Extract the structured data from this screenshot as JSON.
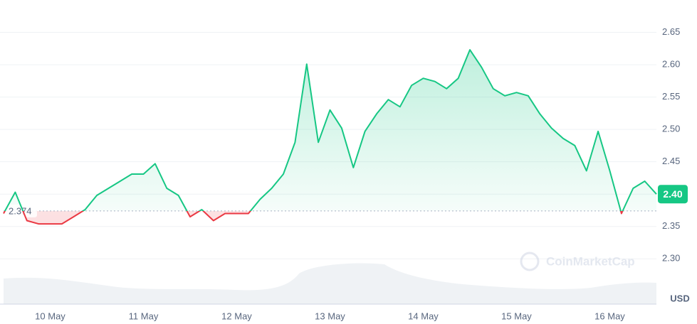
{
  "chart_data": {
    "type": "line",
    "categories": [
      null,
      null,
      null,
      null,
      "10 May",
      null,
      null,
      null,
      null,
      null,
      null,
      null,
      "11 May",
      null,
      null,
      null,
      null,
      null,
      null,
      null,
      "12 May",
      null,
      null,
      null,
      null,
      null,
      null,
      null,
      "13 May",
      null,
      null,
      null,
      null,
      null,
      null,
      null,
      "14 May",
      null,
      null,
      null,
      null,
      null,
      null,
      null,
      "15 May",
      null,
      null,
      null,
      null,
      null,
      null,
      null,
      "16 May",
      null,
      null,
      null,
      null
    ],
    "values": [
      2.37,
      2.403,
      2.359,
      2.354,
      2.354,
      2.354,
      2.365,
      2.376,
      2.398,
      2.409,
      2.42,
      2.431,
      2.431,
      2.447,
      2.409,
      2.398,
      2.365,
      2.376,
      2.359,
      2.37,
      2.37,
      2.37,
      2.392,
      2.409,
      2.431,
      2.48,
      2.601,
      2.48,
      2.53,
      2.502,
      2.441,
      2.497,
      2.524,
      2.546,
      2.535,
      2.568,
      2.579,
      2.574,
      2.563,
      2.579,
      2.623,
      2.596,
      2.563,
      2.552,
      2.557,
      2.552,
      2.524,
      2.502,
      2.486,
      2.475,
      2.436,
      2.497,
      2.436,
      2.37,
      2.409,
      2.42,
      2.4
    ],
    "color": "#16c784",
    "down_color": "#ea3943",
    "reference_line": 2.374,
    "current_price": {
      "value": 2.4,
      "label": "2.40"
    },
    "currency": "USD",
    "watermark": "CoinMarketCap",
    "ylim": [
      2.23,
      2.7
    ],
    "yticks": [
      {
        "value": 2.3,
        "label": "2.30"
      },
      2.35,
      2.4,
      2.45,
      {
        "value": 2.5,
        "label": "2.50"
      },
      2.55,
      {
        "value": 2.6,
        "label": "2.60"
      },
      2.65
    ],
    "grid": true
  }
}
